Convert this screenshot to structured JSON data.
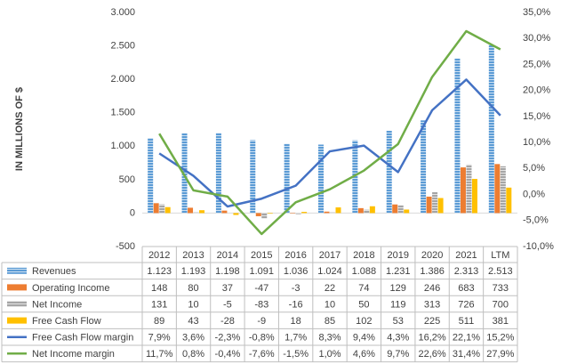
{
  "chart_data": {
    "type": "bar",
    "y_axis_label": "IN MILLIONS OF $",
    "categories": [
      "2012",
      "2013",
      "2014",
      "2015",
      "2016",
      "2017",
      "2018",
      "2019",
      "2020",
      "2021",
      "LTM"
    ],
    "ylim": [
      -500,
      3000
    ],
    "yticks": [
      -500,
      0,
      500,
      {
        "value": 1000,
        "label": "1.000"
      },
      {
        "value": 1500,
        "label": "1.500"
      },
      {
        "value": 2000,
        "label": "2.000"
      },
      {
        "value": 2500,
        "label": "2.500"
      },
      {
        "value": 3000,
        "label": "3.000"
      }
    ],
    "y2lim": [
      -10,
      35
    ],
    "y2ticks": [
      {
        "value": -10,
        "label": "-10,0%"
      },
      {
        "value": -5,
        "label": "-5,0%"
      },
      {
        "value": 0,
        "label": "0,0%"
      },
      {
        "value": 5,
        "label": "5,0%"
      },
      {
        "value": 10,
        "label": "10,0%"
      },
      {
        "value": 15,
        "label": "15,0%"
      },
      {
        "value": 20,
        "label": "20,0%"
      },
      {
        "value": 25,
        "label": "25,0%"
      },
      {
        "value": 30,
        "label": "30,0%"
      },
      {
        "value": 35,
        "label": "35,0%"
      }
    ],
    "grid": false,
    "series": [
      {
        "name": "Revenues",
        "type": "bar",
        "color": "#5b9bd5",
        "pattern": "stripes",
        "values": [
          1123,
          1193,
          1198,
          1091,
          1036,
          1024,
          1088,
          1231,
          1386,
          2313,
          2513
        ],
        "value_labels": [
          "1.123",
          "1.193",
          "1.198",
          "1.091",
          "1.036",
          "1.024",
          "1.088",
          "1.231",
          "1.386",
          "2.313",
          "2.513"
        ]
      },
      {
        "name": "Operating Income",
        "type": "bar",
        "color": "#ed7d31",
        "values": [
          148,
          80,
          37,
          -47,
          -3,
          22,
          74,
          129,
          246,
          683,
          733
        ],
        "value_labels": [
          "148",
          "80",
          "37",
          "-47",
          "-3",
          "22",
          "74",
          "129",
          "246",
          "683",
          "733"
        ]
      },
      {
        "name": "Net Income",
        "type": "bar",
        "color": "#a5a5a5",
        "pattern": "stripes",
        "values": [
          131,
          10,
          -5,
          -83,
          -16,
          10,
          50,
          119,
          313,
          726,
          700
        ],
        "value_labels": [
          "131",
          "10",
          "-5",
          "-83",
          "-16",
          "10",
          "50",
          "119",
          "313",
          "726",
          "700"
        ]
      },
      {
        "name": "Free Cash Flow",
        "type": "bar",
        "color": "#ffc000",
        "values": [
          89,
          43,
          -28,
          -9,
          18,
          85,
          102,
          53,
          225,
          511,
          381
        ],
        "value_labels": [
          "89",
          "43",
          "-28",
          "-9",
          "18",
          "85",
          "102",
          "53",
          "225",
          "511",
          "381"
        ]
      },
      {
        "name": "Free Cash Flow margin",
        "type": "line",
        "axis": "y2",
        "color": "#4472c4",
        "values": [
          7.9,
          3.6,
          -2.3,
          -0.8,
          1.7,
          8.3,
          9.4,
          4.3,
          16.2,
          22.1,
          15.2
        ],
        "value_labels": [
          "7,9%",
          "3,6%",
          "-2,3%",
          "-0,8%",
          "1,7%",
          "8,3%",
          "9,4%",
          "4,3%",
          "16,2%",
          "22,1%",
          "15,2%"
        ]
      },
      {
        "name": "Net Income margin",
        "type": "line",
        "axis": "y2",
        "color": "#70ad47",
        "values": [
          11.7,
          0.8,
          -0.4,
          -7.6,
          -1.5,
          1.0,
          4.6,
          9.7,
          22.6,
          31.4,
          27.9
        ],
        "value_labels": [
          "11,7%",
          "0,8%",
          "-0,4%",
          "-7,6%",
          "-1,5%",
          "1,0%",
          "4,6%",
          "9,7%",
          "22,6%",
          "31,4%",
          "27,9%"
        ]
      }
    ]
  }
}
